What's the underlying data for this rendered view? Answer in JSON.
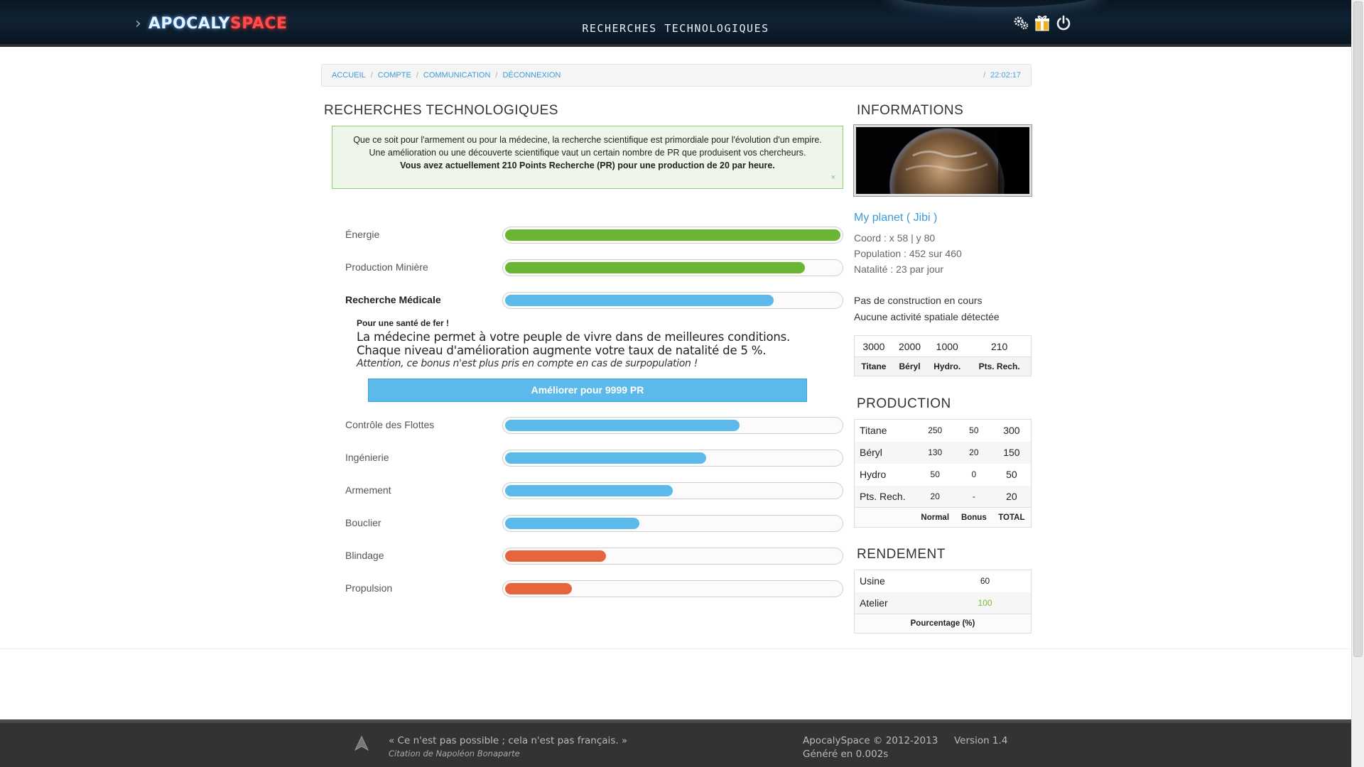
{
  "header": {
    "logo_part1": "APOCALY",
    "logo_part2": "SPACE",
    "logo_chevron": "›",
    "title": "RECHERCHES TECHNOLOGIQUES",
    "icons": [
      "gears-icon",
      "gift-icon",
      "power-icon"
    ]
  },
  "breadcrumb": {
    "items": [
      "ACCUEIL",
      "COMPTE",
      "COMMUNICATION",
      "DÉCONNEXION"
    ],
    "separator": "/",
    "time": "22:02:17"
  },
  "main": {
    "title": "RECHERCHES TECHNOLOGIQUES",
    "alert": {
      "line1": "Que ce soit pour l'armement ou pour la médecine, la recherche scientifique est primordiale pour l'évolution d'un empire.",
      "line2": "Une amélioration ou une découverte scientifique vaut un certain nombre de PR que produisent vos chercheurs.",
      "line3": "Vous avez actuellement 210 Points Recherche (PR) pour une production de 20 par heure.",
      "close": "×"
    },
    "techs": [
      {
        "label": "Énergie",
        "progress": 1.0,
        "color": "#6ab632"
      },
      {
        "label": "Production Minière",
        "progress": 0.895,
        "color": "#6ab632"
      },
      {
        "label": "Recherche Médicale",
        "progress": 0.8,
        "color": "#5bbaea"
      },
      {
        "label": "Contrôle des Flottes",
        "progress": 0.7,
        "color": "#5bbaea"
      },
      {
        "label": "Ingénierie",
        "progress": 0.6,
        "color": "#5bbaea"
      },
      {
        "label": "Armement",
        "progress": 0.5,
        "color": "#5bbaea"
      },
      {
        "label": "Bouclier",
        "progress": 0.4,
        "color": "#5bbaea"
      },
      {
        "label": "Blindage",
        "progress": 0.3,
        "color": "#e8643c"
      },
      {
        "label": "Propulsion",
        "progress": 0.2,
        "color": "#e8643c"
      }
    ],
    "detail": {
      "subtitle": "Pour une santé de fer !",
      "description": "La médecine permet à votre peuple de vivre dans de meilleures conditions. Chaque niveau d'amélioration augmente votre taux de natalité de 5 %.",
      "warning": "Attention, ce bonus n'est plus pris en compte en cas de surpopulation !",
      "button": "Améliorer pour 9999 PR"
    }
  },
  "sidebar": {
    "info_title": "INFORMATIONS",
    "planet_name": "My planet ( Jibi )",
    "coord": "Coord : x 58 | y 80",
    "population": "Population : 452 sur 460",
    "natalite": "Natalité : 23 par jour",
    "construction": "Pas de construction en cours",
    "spatial": "Aucune activité spatiale détectée",
    "resources": {
      "values": [
        "3000",
        "2000",
        "1000",
        "210"
      ],
      "labels": [
        "Titane",
        "Béryl",
        "Hydro.",
        "Pts. Rech."
      ]
    },
    "production_title": "PRODUCTION",
    "production": {
      "rows": [
        {
          "name": "Titane",
          "normal": "250",
          "bonus": "50",
          "total": "300"
        },
        {
          "name": "Béryl",
          "normal": "130",
          "bonus": "20",
          "total": "150"
        },
        {
          "name": "Hydro",
          "normal": "50",
          "bonus": "0",
          "total": "50"
        },
        {
          "name": "Pts. Rech.",
          "normal": "20",
          "bonus": "-",
          "total": "20"
        }
      ],
      "headers": [
        "Normal",
        "Bonus",
        "TOTAL"
      ]
    },
    "rendement_title": "RENDEMENT",
    "rendement": {
      "rows": [
        {
          "name": "Usine",
          "value": "60"
        },
        {
          "name": "Atelier",
          "value": "100"
        }
      ],
      "footer": "Pourcentage (%)"
    }
  },
  "footer": {
    "quote": "« Ce n'est pas possible ; cela n'est pas français. »",
    "author": "Citation de Napoléon Bonaparte",
    "copyright": "ApocalySpace © 2012-2013",
    "version": "Version 1.4",
    "generated": "Généré en 0.002s"
  }
}
